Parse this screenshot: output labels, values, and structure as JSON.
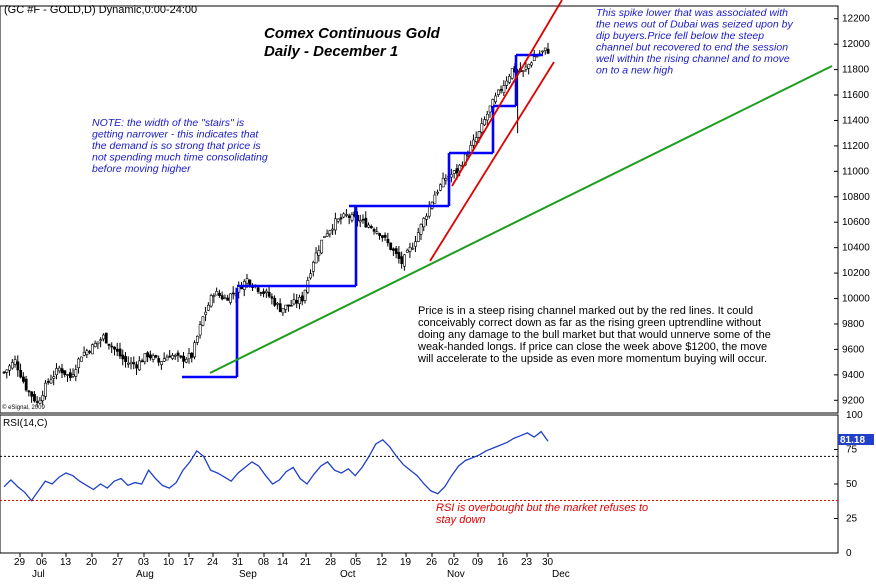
{
  "chart_data": [
    {
      "type": "candlestick",
      "panel": "price",
      "header": "(GC #F - GOLD,D) Dynamic,0:00-24:00",
      "title": "Comex Continuous Gold",
      "subtitle": "Daily  -  December 1",
      "copyright": "© eSignal, 2009",
      "ylim": [
        9100,
        12300
      ],
      "yticks": [
        "9200",
        "9400",
        "9600",
        "9800",
        "10000",
        "10200",
        "10400",
        "10600",
        "10800",
        "11000",
        "11200",
        "11400",
        "11600",
        "11800",
        "12000",
        "12200"
      ],
      "close_path": [
        [
          0,
          9420
        ],
        [
          4,
          9510
        ],
        [
          8,
          9300
        ],
        [
          12,
          9180
        ],
        [
          16,
          9350
        ],
        [
          20,
          9450
        ],
        [
          24,
          9380
        ],
        [
          28,
          9560
        ],
        [
          32,
          9620
        ],
        [
          36,
          9700
        ],
        [
          40,
          9600
        ],
        [
          44,
          9500
        ],
        [
          48,
          9480
        ],
        [
          52,
          9560
        ],
        [
          56,
          9500
        ],
        [
          60,
          9560
        ],
        [
          64,
          9520
        ],
        [
          68,
          9550
        ],
        [
          72,
          9850
        ],
        [
          76,
          10050
        ],
        [
          80,
          10000
        ],
        [
          84,
          10060
        ],
        [
          88,
          10150
        ],
        [
          92,
          10080
        ],
        [
          96,
          10020
        ],
        [
          100,
          9920
        ],
        [
          104,
          9950
        ],
        [
          108,
          10000
        ],
        [
          112,
          10300
        ],
        [
          116,
          10500
        ],
        [
          120,
          10600
        ],
        [
          124,
          10650
        ],
        [
          128,
          10620
        ],
        [
          132,
          10580
        ],
        [
          136,
          10520
        ],
        [
          140,
          10400
        ],
        [
          144,
          10280
        ],
        [
          148,
          10420
        ],
        [
          152,
          10620
        ],
        [
          156,
          10820
        ],
        [
          160,
          10950
        ],
        [
          164,
          11000
        ],
        [
          168,
          11150
        ],
        [
          172,
          11300
        ],
        [
          176,
          11500
        ],
        [
          180,
          11650
        ],
        [
          184,
          11800
        ],
        [
          188,
          11780
        ],
        [
          192,
          11900
        ],
        [
          196,
          11950
        ]
      ],
      "annotations": [
        "NOTE: the width of the \"stairs\" is getting narrower - this indicates that the demand is so strong that price is not spending much time consolidating before moving higher",
        "This spike lower that was associated with the news out of Dubai was seized upon by dip buyers.Price fell below the steep channel but recovered to end the session well within the rising channel and to move on to a new high",
        "Price is in a steep rising channel marked out by the red lines. It could conceivably correct down as far as the rising green uptrendline without doing any damage to the bull market but that would unnerve some of the weak-handed longs. If price can close the week above $1200, the move will accelerate to the upside as even more momentum buying will occur."
      ],
      "colors": {
        "candle": "#000000",
        "stairs": "#0000ff",
        "channel": "#e00000",
        "uptrend": "#1e9e1e"
      }
    },
    {
      "type": "line",
      "panel": "indicator",
      "label": "RSI(14,C)",
      "last_value": "81.18",
      "ylim": [
        0,
        100
      ],
      "yticks": [
        "0",
        "25",
        "50",
        "75",
        "100"
      ],
      "reference_levels": [
        70,
        38
      ],
      "values": [
        48,
        53,
        48,
        44,
        38,
        45,
        52,
        50,
        55,
        58,
        56,
        52,
        49,
        46,
        50,
        47,
        52,
        54,
        49,
        51,
        50,
        60,
        54,
        49,
        47,
        51,
        60,
        66,
        74,
        70,
        60,
        58,
        55,
        52,
        58,
        62,
        66,
        63,
        56,
        50,
        53,
        59,
        62,
        54,
        50,
        57,
        63,
        66,
        60,
        58,
        61,
        56,
        62,
        70,
        79,
        82,
        77,
        70,
        64,
        60,
        56,
        50,
        45,
        43,
        48,
        56,
        63,
        67,
        69,
        71,
        74,
        76,
        78,
        80,
        83,
        85,
        87,
        84,
        88,
        81
      ],
      "annotation": "RSI is overbought but the market refuses to stay down",
      "colors": {
        "line": "#2040c8",
        "overbought": "#000000",
        "oversold": "#e00000"
      }
    }
  ],
  "xaxis": {
    "day_labels": [
      "29",
      "06",
      "13",
      "20",
      "27",
      "03",
      "10",
      "17",
      "24",
      "31",
      "08",
      "14",
      "21",
      "28",
      "05",
      "12",
      "19",
      "26",
      "02",
      "09",
      "16",
      "23",
      "30"
    ],
    "month_labels": [
      "Jul",
      "Aug",
      "Sep",
      "Oct",
      "Nov",
      "Dec"
    ]
  }
}
